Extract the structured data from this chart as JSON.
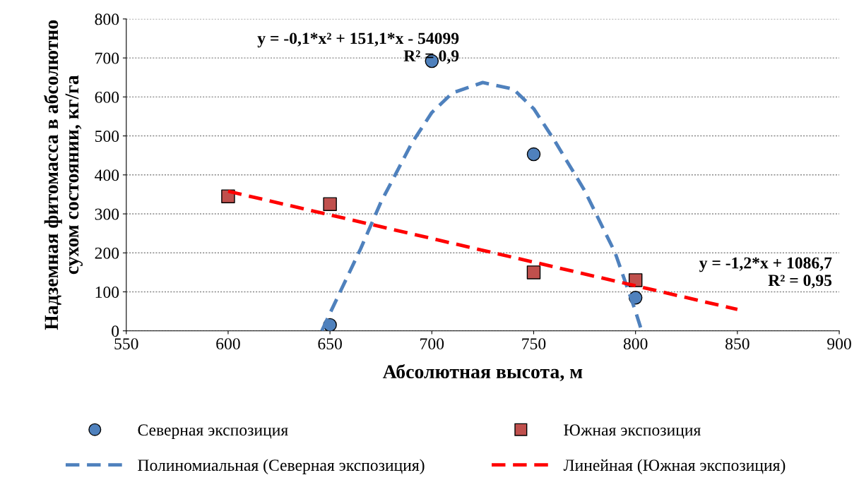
{
  "chart_data": {
    "type": "scatter",
    "xlabel": "Абсолютная высота, м",
    "ylabel": "Надземная фитомасса в абсолютно сухом состоянии, кг/га",
    "xlim": [
      550,
      900
    ],
    "xticks": [
      550,
      600,
      650,
      700,
      750,
      800,
      850,
      900
    ],
    "ylim": [
      0,
      800
    ],
    "yticks": [
      0,
      100,
      200,
      300,
      400,
      500,
      600,
      700,
      800
    ],
    "grid": "y",
    "legend": "bottom",
    "series": [
      {
        "name": "Северная экспозиция",
        "marker": "circle",
        "color": "#4f81bd",
        "x": [
          650,
          700,
          750,
          800
        ],
        "values": [
          15,
          692,
          453,
          85
        ]
      },
      {
        "name": "Южная экспозиция",
        "marker": "square",
        "color": "#c0504d",
        "x": [
          600,
          650,
          750,
          800
        ],
        "values": [
          345,
          325,
          150,
          130
        ]
      },
      {
        "name": "Полиномиальная (Северная экспозиция)",
        "type": "line",
        "line_style": "dashed",
        "color": "#4f81bd",
        "x": [
          646,
          650,
          655,
          665,
          675,
          690,
          700,
          710,
          725,
          740,
          750,
          760,
          775,
          790,
          800,
          803
        ],
        "values": [
          0,
          45,
          100,
          210,
          330,
          480,
          560,
          610,
          637,
          620,
          570,
          490,
          360,
          200,
          50,
          0
        ]
      },
      {
        "name": "Линейная (Южная экспозиция)",
        "type": "line",
        "line_style": "dashed",
        "color": "#ff0000",
        "x": [
          600,
          850
        ],
        "values": [
          358,
          55
        ]
      }
    ],
    "annotations": [
      "y = -0,1*x² + 151,1*x - 54099\nR² = 0,9",
      "y = -1,2*x + 1086,7\nR² = 0,95"
    ]
  }
}
